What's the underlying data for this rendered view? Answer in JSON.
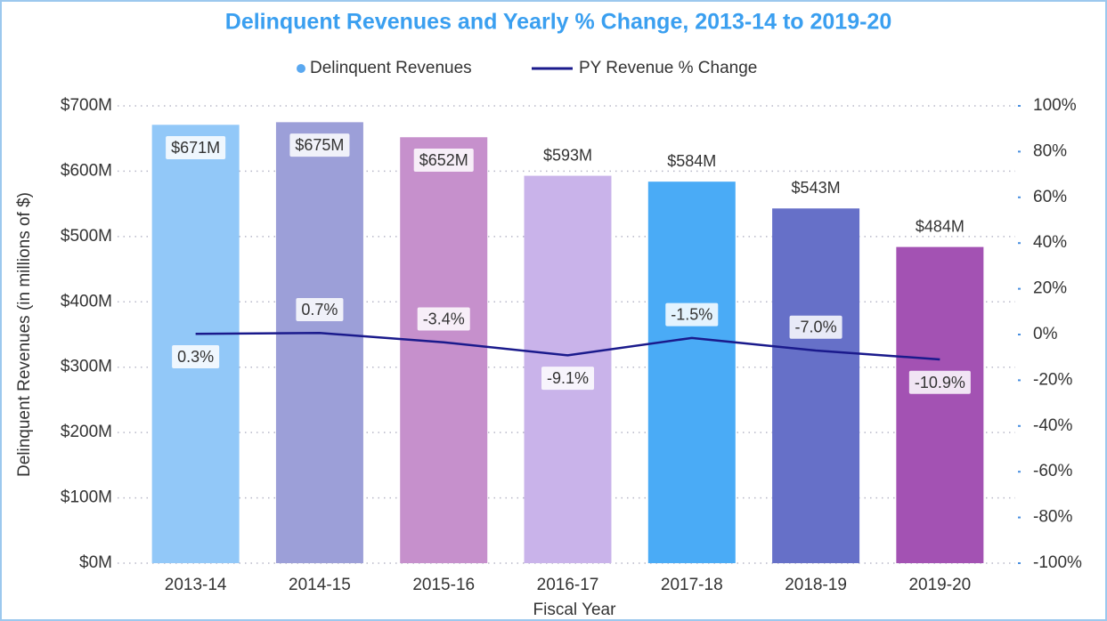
{
  "chart_data": {
    "type": "bar_line",
    "title": "Delinquent Revenues and Yearly % Change, 2013-14 to 2019-20",
    "x_label": "Fiscal Year",
    "y_label": "Delinquent Revenues (in millions of $)",
    "categories": [
      "2013-14",
      "2014-15",
      "2015-16",
      "2016-17",
      "2017-18",
      "2018-19",
      "2019-20"
    ],
    "series": [
      {
        "name": "Delinquent Revenues",
        "type": "bar",
        "color": "#5aa8f0",
        "colors": [
          "#92c8f8",
          "#9c9fd8",
          "#c690cc",
          "#c9b3ea",
          "#4aabf6",
          "#6670c8",
          "#a352b3"
        ],
        "values": [
          671,
          675,
          652,
          593,
          584,
          543,
          484
        ],
        "value_labels": [
          "$671M",
          "$675M",
          "$652M",
          "$593M",
          "$584M",
          "$543M",
          "$484M"
        ]
      },
      {
        "name": "PY Revenue % Change",
        "type": "line",
        "axis": "y2",
        "color": "#1a1a8c",
        "values": [
          0.3,
          0.7,
          -3.4,
          -9.1,
          -1.5,
          -7.0,
          -10.9
        ],
        "value_labels": [
          "0.3%",
          "0.7%",
          "-3.4%",
          "-9.1%",
          "-1.5%",
          "-7.0%",
          "-10.9%"
        ]
      }
    ],
    "ylim": [
      0,
      700
    ],
    "yticks": [
      {
        "value": 0,
        "label": "$0M"
      },
      {
        "value": 100,
        "label": "$100M"
      },
      {
        "value": 200,
        "label": "$200M"
      },
      {
        "value": 300,
        "label": "$300M"
      },
      {
        "value": 400,
        "label": "$400M"
      },
      {
        "value": 500,
        "label": "$500M"
      },
      {
        "value": 600,
        "label": "$600M"
      },
      {
        "value": 700,
        "label": "$700M"
      }
    ],
    "y2lim": [
      -100,
      100
    ],
    "y2ticks": [
      {
        "value": -100,
        "label": "-100%"
      },
      {
        "value": -80,
        "label": "-80%"
      },
      {
        "value": -60,
        "label": "-60%"
      },
      {
        "value": -40,
        "label": "-40%"
      },
      {
        "value": -20,
        "label": "-20%"
      },
      {
        "value": 0,
        "label": "0%"
      },
      {
        "value": 20,
        "label": "20%"
      },
      {
        "value": 40,
        "label": "40%"
      },
      {
        "value": 60,
        "label": "60%"
      },
      {
        "value": 80,
        "label": "80%"
      },
      {
        "value": 100,
        "label": "100%"
      }
    ],
    "grid": true,
    "legend": "top"
  }
}
